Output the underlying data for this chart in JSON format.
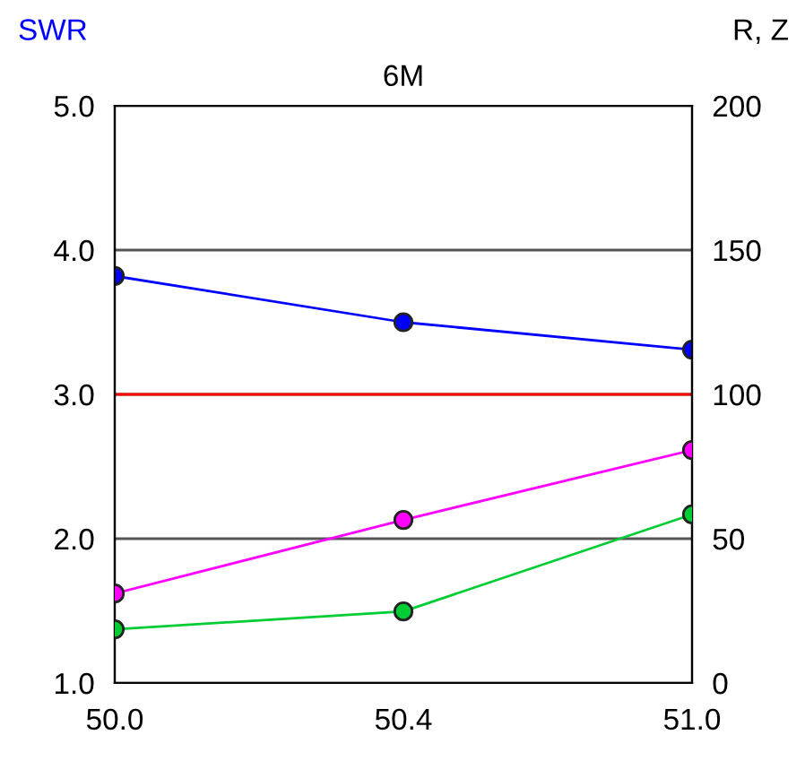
{
  "chart_data": {
    "type": "line",
    "title": "6M",
    "ylabel": "SWR",
    "y2label": "R, Z",
    "categories": [
      "50.0",
      "50.4",
      "51.0"
    ],
    "series": [
      {
        "color": "#0000ff",
        "values": [
          3.82,
          3.5,
          3.31
        ]
      },
      {
        "color": "#ff00ff",
        "values": [
          31,
          56.5,
          80.7
        ],
        "axis": "y2"
      },
      {
        "color": "#00cc33",
        "values": [
          18.6,
          24.8,
          58.4
        ],
        "axis": "y2"
      }
    ],
    "ylim": [
      1.0,
      5.0
    ],
    "yticks": [
      {
        "value": 1,
        "label": "1.0"
      },
      {
        "value": 2,
        "label": "2.0"
      },
      {
        "value": 3,
        "label": "3.0"
      },
      {
        "value": 4,
        "label": "4.0"
      },
      {
        "value": 5,
        "label": "5.0"
      }
    ],
    "y2lim": [
      0,
      200
    ],
    "y2ticks": [
      0,
      50,
      100,
      150,
      200
    ],
    "ref_lines": [
      {
        "axis": "y",
        "value": 3.0,
        "color": "#ff0000"
      }
    ],
    "grid": "y",
    "marker": "circle",
    "line_style": "solid"
  }
}
